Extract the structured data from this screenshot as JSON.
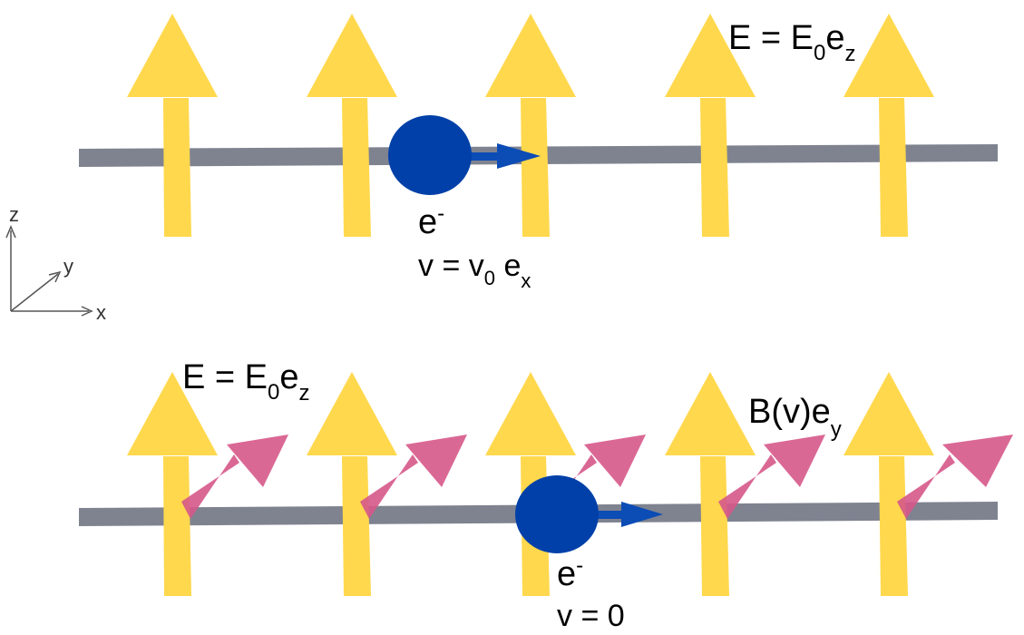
{
  "colors": {
    "e_field_arrow": "#FFD84D",
    "b_field_arrow": "#D6588A",
    "wire": "#7F8390",
    "electron": "#0040A8",
    "velocity_arrow": "#0B4CB5",
    "axis": "#555555"
  },
  "axes": {
    "z": "z",
    "y": "y",
    "x": "x"
  },
  "top_panel": {
    "field_label": {
      "main": "E = E",
      "sub1": "0",
      "mid": "e",
      "sub2": "z"
    },
    "electron_label": {
      "main": "e",
      "sup": "-"
    },
    "velocity_label": {
      "main": "v = v",
      "sub1": "0",
      "mid": " e",
      "sub2": "x"
    },
    "e_arrow_count": 5
  },
  "bottom_panel": {
    "field_label": {
      "main": "E = E",
      "sub1": "0",
      "mid": "e",
      "sub2": "z"
    },
    "b_label": {
      "main": "B(v)e",
      "sub": "y"
    },
    "electron_label": {
      "main": "e",
      "sup": "-"
    },
    "velocity_label": {
      "main": "v = 0"
    },
    "e_arrow_count": 5,
    "b_arrow_count": 5
  }
}
